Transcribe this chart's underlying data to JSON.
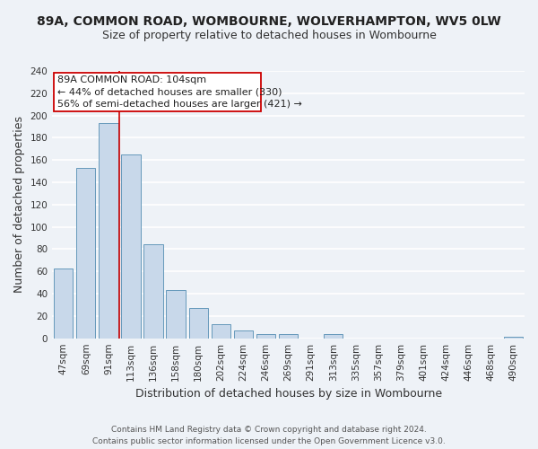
{
  "title": "89A, COMMON ROAD, WOMBOURNE, WOLVERHAMPTON, WV5 0LW",
  "subtitle": "Size of property relative to detached houses in Wombourne",
  "xlabel": "Distribution of detached houses by size in Wombourne",
  "ylabel": "Number of detached properties",
  "footer_line1": "Contains HM Land Registry data © Crown copyright and database right 2024.",
  "footer_line2": "Contains public sector information licensed under the Open Government Licence v3.0.",
  "bar_labels": [
    "47sqm",
    "69sqm",
    "91sqm",
    "113sqm",
    "136sqm",
    "158sqm",
    "180sqm",
    "202sqm",
    "224sqm",
    "246sqm",
    "269sqm",
    "291sqm",
    "313sqm",
    "335sqm",
    "357sqm",
    "379sqm",
    "401sqm",
    "424sqm",
    "446sqm",
    "468sqm",
    "490sqm"
  ],
  "bar_values": [
    63,
    153,
    193,
    165,
    84,
    43,
    27,
    13,
    7,
    4,
    4,
    0,
    4,
    0,
    0,
    0,
    0,
    0,
    0,
    0,
    1
  ],
  "bar_color": "#c8d8ea",
  "bar_edge_color": "#6699bb",
  "ann_line1": "89A COMMON ROAD: 104sqm",
  "ann_line2": "← 44% of detached houses are smaller (330)",
  "ann_line3": "56% of semi-detached houses are larger (421) →",
  "vline_color": "#cc0000",
  "vline_x": 2.5,
  "ylim": [
    0,
    240
  ],
  "yticks": [
    0,
    20,
    40,
    60,
    80,
    100,
    120,
    140,
    160,
    180,
    200,
    220,
    240
  ],
  "background_color": "#eef2f7",
  "grid_color": "#dde5ef",
  "title_fontsize": 10,
  "subtitle_fontsize": 9,
  "axis_label_fontsize": 9,
  "tick_fontsize": 7.5
}
